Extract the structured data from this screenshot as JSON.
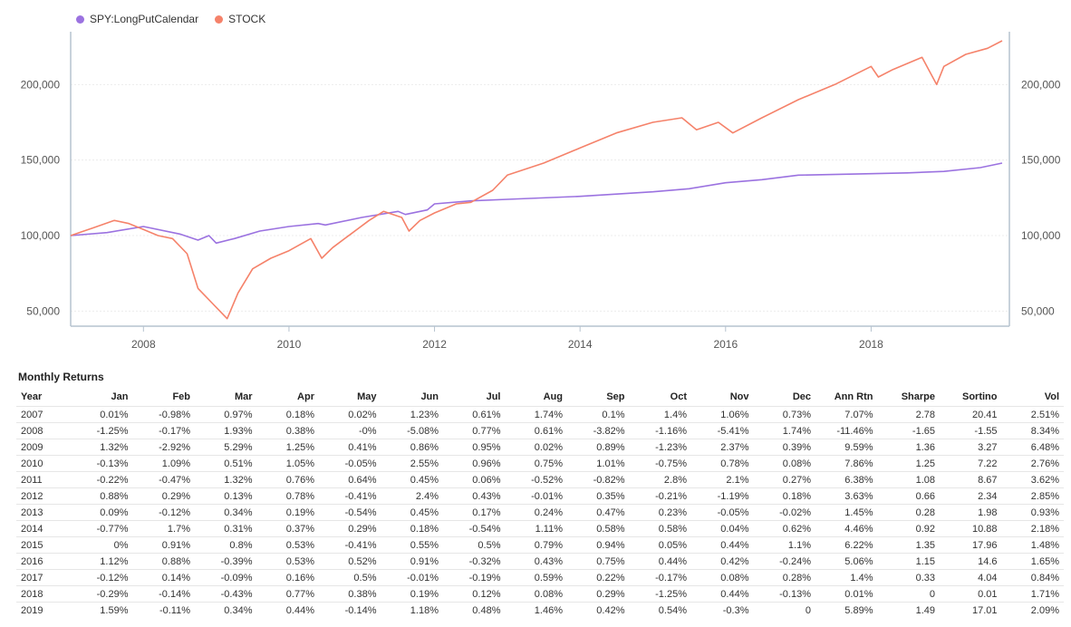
{
  "chart_data": {
    "type": "line",
    "x_axis": {
      "ticks": [
        "2008",
        "2010",
        "2012",
        "2014",
        "2016",
        "2018"
      ],
      "range": [
        "2007-01",
        "2019-10"
      ]
    },
    "y_axis": {
      "ticks": [
        "50,000",
        "100,000",
        "150,000",
        "200,000"
      ],
      "range": [
        40000,
        235000
      ],
      "dual_side": true
    },
    "legend_position": "top-left",
    "grid": true,
    "series": [
      {
        "name": "SPY:LongPutCalendar",
        "color": "#9b72e0",
        "x": [
          2007.0,
          2007.5,
          2008.0,
          2008.5,
          2008.75,
          2008.9,
          2009.0,
          2009.25,
          2009.6,
          2010.0,
          2010.4,
          2010.5,
          2011.0,
          2011.5,
          2011.6,
          2011.9,
          2012.0,
          2012.5,
          2013.0,
          2014.0,
          2015.0,
          2015.5,
          2016.0,
          2016.5,
          2017.0,
          2018.0,
          2018.5,
          2019.0,
          2019.5,
          2019.8
        ],
        "values": [
          100000,
          102000,
          106000,
          101000,
          97000,
          100000,
          95000,
          98000,
          103000,
          106000,
          108000,
          107000,
          112000,
          116000,
          114000,
          117000,
          121000,
          123000,
          124000,
          126000,
          129000,
          131000,
          135000,
          137000,
          140000,
          141000,
          141500,
          142500,
          145000,
          148000
        ]
      },
      {
        "name": "STOCK",
        "color": "#f5826a",
        "x": [
          2007.0,
          2007.3,
          2007.6,
          2007.8,
          2008.0,
          2008.2,
          2008.4,
          2008.6,
          2008.75,
          2008.85,
          2008.95,
          2009.05,
          2009.15,
          2009.3,
          2009.5,
          2009.75,
          2010.0,
          2010.3,
          2010.45,
          2010.6,
          2010.85,
          2011.1,
          2011.3,
          2011.55,
          2011.65,
          2011.8,
          2012.0,
          2012.3,
          2012.5,
          2012.8,
          2013.0,
          2013.5,
          2014.0,
          2014.5,
          2015.0,
          2015.4,
          2015.6,
          2015.9,
          2016.1,
          2016.5,
          2017.0,
          2017.5,
          2018.0,
          2018.1,
          2018.3,
          2018.7,
          2018.9,
          2019.0,
          2019.3,
          2019.6,
          2019.8
        ],
        "values": [
          100000,
          105000,
          110000,
          108000,
          104000,
          100000,
          98000,
          88000,
          65000,
          60000,
          55000,
          50000,
          45000,
          62000,
          78000,
          85000,
          90000,
          98000,
          85000,
          92000,
          101000,
          110000,
          116000,
          112000,
          103000,
          110000,
          115000,
          121000,
          122000,
          130000,
          140000,
          148000,
          158000,
          168000,
          175000,
          178000,
          170000,
          175000,
          168000,
          178000,
          190000,
          200000,
          212000,
          205000,
          210000,
          218000,
          200000,
          212000,
          220000,
          224000,
          229000
        ]
      }
    ]
  },
  "table": {
    "title": "Monthly Returns",
    "headers": [
      "Year",
      "Jan",
      "Feb",
      "Mar",
      "Apr",
      "May",
      "Jun",
      "Jul",
      "Aug",
      "Sep",
      "Oct",
      "Nov",
      "Dec",
      "Ann Rtn",
      "Sharpe",
      "Sortino",
      "Vol"
    ],
    "rows": [
      [
        "2007",
        "0.01%",
        "-0.98%",
        "0.97%",
        "0.18%",
        "0.02%",
        "1.23%",
        "0.61%",
        "1.74%",
        "0.1%",
        "1.4%",
        "1.06%",
        "0.73%",
        "7.07%",
        "2.78",
        "20.41",
        "2.51%"
      ],
      [
        "2008",
        "-1.25%",
        "-0.17%",
        "1.93%",
        "0.38%",
        "-0%",
        "-5.08%",
        "0.77%",
        "0.61%",
        "-3.82%",
        "-1.16%",
        "-5.41%",
        "1.74%",
        "-11.46%",
        "-1.65",
        "-1.55",
        "8.34%"
      ],
      [
        "2009",
        "1.32%",
        "-2.92%",
        "5.29%",
        "1.25%",
        "0.41%",
        "0.86%",
        "0.95%",
        "0.02%",
        "0.89%",
        "-1.23%",
        "2.37%",
        "0.39%",
        "9.59%",
        "1.36",
        "3.27",
        "6.48%"
      ],
      [
        "2010",
        "-0.13%",
        "1.09%",
        "0.51%",
        "1.05%",
        "-0.05%",
        "2.55%",
        "0.96%",
        "0.75%",
        "1.01%",
        "-0.75%",
        "0.78%",
        "0.08%",
        "7.86%",
        "1.25",
        "7.22",
        "2.76%"
      ],
      [
        "2011",
        "-0.22%",
        "-0.47%",
        "1.32%",
        "0.76%",
        "0.64%",
        "0.45%",
        "0.06%",
        "-0.52%",
        "-0.82%",
        "2.8%",
        "2.1%",
        "0.27%",
        "6.38%",
        "1.08",
        "8.67",
        "3.62%"
      ],
      [
        "2012",
        "0.88%",
        "0.29%",
        "0.13%",
        "0.78%",
        "-0.41%",
        "2.4%",
        "0.43%",
        "-0.01%",
        "0.35%",
        "-0.21%",
        "-1.19%",
        "0.18%",
        "3.63%",
        "0.66",
        "2.34",
        "2.85%"
      ],
      [
        "2013",
        "0.09%",
        "-0.12%",
        "0.34%",
        "0.19%",
        "-0.54%",
        "0.45%",
        "0.17%",
        "0.24%",
        "0.47%",
        "0.23%",
        "-0.05%",
        "-0.02%",
        "1.45%",
        "0.28",
        "1.98",
        "0.93%"
      ],
      [
        "2014",
        "-0.77%",
        "1.7%",
        "0.31%",
        "0.37%",
        "0.29%",
        "0.18%",
        "-0.54%",
        "1.11%",
        "0.58%",
        "0.58%",
        "0.04%",
        "0.62%",
        "4.46%",
        "0.92",
        "10.88",
        "2.18%"
      ],
      [
        "2015",
        "0%",
        "0.91%",
        "0.8%",
        "0.53%",
        "-0.41%",
        "0.55%",
        "0.5%",
        "0.79%",
        "0.94%",
        "0.05%",
        "0.44%",
        "1.1%",
        "6.22%",
        "1.35",
        "17.96",
        "1.48%"
      ],
      [
        "2016",
        "1.12%",
        "0.88%",
        "-0.39%",
        "0.53%",
        "0.52%",
        "0.91%",
        "-0.32%",
        "0.43%",
        "0.75%",
        "0.44%",
        "0.42%",
        "-0.24%",
        "5.06%",
        "1.15",
        "14.6",
        "1.65%"
      ],
      [
        "2017",
        "-0.12%",
        "0.14%",
        "-0.09%",
        "0.16%",
        "0.5%",
        "-0.01%",
        "-0.19%",
        "0.59%",
        "0.22%",
        "-0.17%",
        "0.08%",
        "0.28%",
        "1.4%",
        "0.33",
        "4.04",
        "0.84%"
      ],
      [
        "2018",
        "-0.29%",
        "-0.14%",
        "-0.43%",
        "0.77%",
        "0.38%",
        "0.19%",
        "0.12%",
        "0.08%",
        "0.29%",
        "-1.25%",
        "0.44%",
        "-0.13%",
        "0.01%",
        "0",
        "0.01",
        "1.71%"
      ],
      [
        "2019",
        "1.59%",
        "-0.11%",
        "0.34%",
        "0.44%",
        "-0.14%",
        "1.18%",
        "0.48%",
        "1.46%",
        "0.42%",
        "0.54%",
        "-0.3%",
        "0",
        "5.89%",
        "1.49",
        "17.01",
        "2.09%"
      ]
    ]
  }
}
